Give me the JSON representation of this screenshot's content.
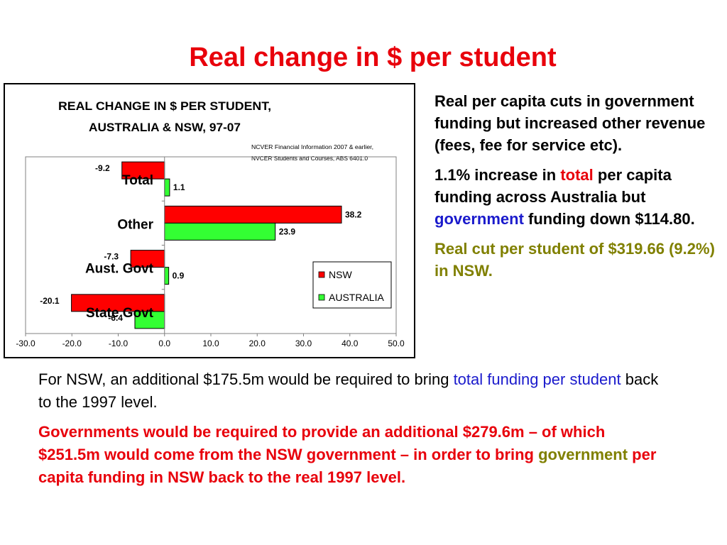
{
  "slide": {
    "title": "Real change in $ per student"
  },
  "right_text": {
    "p1": "Real per capita cuts in government funding but increased other revenue (fees, fee for service etc).",
    "p2_a": "1.1% increase in ",
    "p2_b": "total",
    "p2_c": " per capita funding across Australia but ",
    "p2_d": "government",
    "p2_e": " funding down $114.80.",
    "p3": "Real cut per student of $319.66 (9.2%) in NSW."
  },
  "bottom_text": {
    "p1_a": "For NSW, an additional $175.5m would be required to bring ",
    "p1_b": "total funding per student",
    "p1_c": " back to the 1997 level.",
    "p2_a": "Governments would be required to provide an additional $279.6m – of which $251.5m would come from the NSW government – in order to bring ",
    "p2_b": "government",
    "p2_c": " per capita funding in NSW back to the real 1997 level."
  },
  "chart_data": {
    "type": "bar",
    "orientation": "horizontal",
    "title_line1": "REAL CHANGE IN $ PER STUDENT,",
    "title_line2": "AUSTRALIA & NSW, 97-07",
    "source_line1": "NCVER Financial Information 2007 & earlier,",
    "source_line2": "NVCER Students and Courses, ABS 6401.0",
    "categories": [
      "Total",
      "Other",
      "Aust. Govt",
      "State Govt"
    ],
    "series": [
      {
        "name": "NSW",
        "values": [
          -9.2,
          38.2,
          -7.3,
          -20.1
        ],
        "color": "#ff0000"
      },
      {
        "name": "AUSTRALIA",
        "values": [
          1.1,
          23.9,
          0.9,
          -6.4
        ],
        "color": "#33ff33"
      }
    ],
    "xlim": [
      -30,
      50
    ],
    "xticks": [
      "-30.0",
      "-20.0",
      "-10.0",
      "0.0",
      "10.0",
      "20.0",
      "30.0",
      "40.0",
      "50.0"
    ],
    "legend_position": "bottom-right",
    "grid": false
  }
}
